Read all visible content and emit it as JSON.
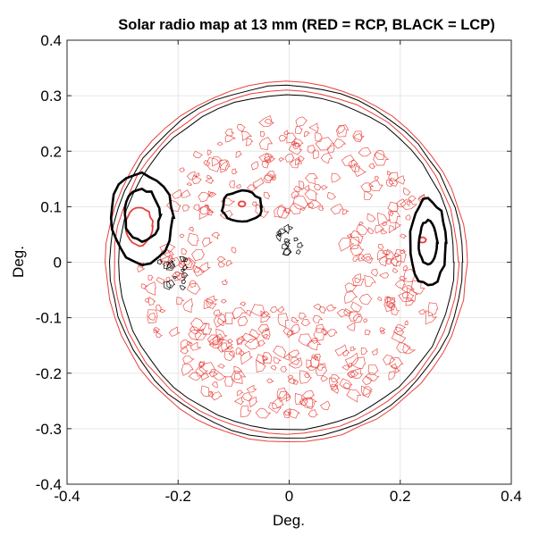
{
  "chart_data": {
    "type": "contour",
    "title": "Solar radio map at 13 mm (RED = RCP, BLACK = LCP)",
    "xlabel": "Deg.",
    "ylabel": "Deg.",
    "xlim": [
      -0.4,
      0.4
    ],
    "ylim": [
      -0.4,
      0.4
    ],
    "x_ticks": [
      -0.4,
      -0.2,
      0,
      0.2,
      0.4
    ],
    "y_ticks": [
      -0.4,
      -0.3,
      -0.2,
      -0.1,
      0,
      0.1,
      0.2,
      0.3,
      0.4
    ],
    "x_tick_labels": [
      "-0.4",
      "-0.2",
      "0",
      "0.2",
      "0.4"
    ],
    "y_tick_labels": [
      "-0.4",
      "-0.3",
      "-0.2",
      "-0.1",
      "0",
      "0.1",
      "0.2",
      "0.3",
      "0.4"
    ],
    "grid": true,
    "series": [
      {
        "name": "RCP",
        "color": "#e8413c",
        "features": [
          {
            "kind": "limb",
            "center": [
              -0.005,
              0.0
            ],
            "radius": 0.31
          },
          {
            "kind": "limb",
            "center": [
              -0.005,
              0.0
            ],
            "radius": 0.325
          },
          {
            "kind": "speckle-field",
            "center": [
              0.0,
              -0.01
            ],
            "radius": 0.27
          },
          {
            "kind": "source",
            "center": [
              -0.27,
              0.065
            ],
            "radius": 0.03
          },
          {
            "kind": "source",
            "center": [
              -0.085,
              0.105
            ],
            "radius": 0.005
          },
          {
            "kind": "source",
            "center": [
              0.24,
              0.04
            ],
            "radius": 0.005
          }
        ]
      },
      {
        "name": "LCP",
        "color": "#000000",
        "features": [
          {
            "kind": "limb",
            "center": [
              -0.005,
              0.0
            ],
            "radius": 0.302
          },
          {
            "kind": "limb",
            "center": [
              -0.005,
              0.0
            ],
            "radius": 0.318
          },
          {
            "kind": "source",
            "center": [
              -0.265,
              0.08
            ],
            "radius": 0.07
          },
          {
            "kind": "source",
            "center": [
              -0.265,
              0.085
            ],
            "radius": 0.04
          },
          {
            "kind": "source",
            "center": [
              -0.085,
              0.1
            ],
            "radius": 0.03
          },
          {
            "kind": "source",
            "center": [
              0.25,
              0.035
            ],
            "radius": 0.06
          },
          {
            "kind": "source",
            "center": [
              0.25,
              0.035
            ],
            "radius": 0.03
          },
          {
            "kind": "noise",
            "center": [
              -0.21,
              -0.02
            ],
            "radius": 0.025
          },
          {
            "kind": "noise",
            "center": [
              0.0,
              0.04
            ],
            "radius": 0.02
          }
        ]
      }
    ]
  }
}
